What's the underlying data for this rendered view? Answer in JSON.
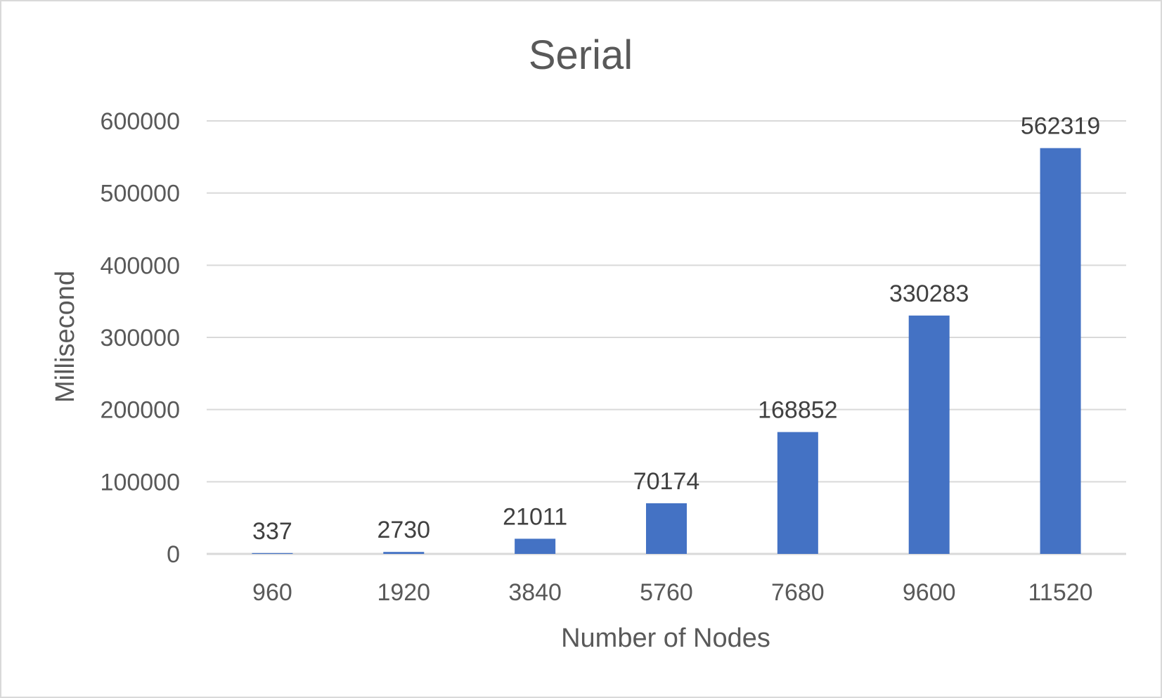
{
  "chart_data": {
    "type": "bar",
    "title": "Serial",
    "xlabel": "Number of Nodes",
    "ylabel": "Millisecond",
    "categories": [
      "960",
      "1920",
      "3840",
      "5760",
      "7680",
      "9600",
      "11520"
    ],
    "values": [
      337,
      2730,
      21011,
      70174,
      168852,
      330283,
      562319
    ],
    "data_labels": [
      "337",
      "2730",
      "21011",
      "70174",
      "168852",
      "330283",
      "562319"
    ],
    "ylim": [
      0,
      600000
    ],
    "yticks": [
      0,
      100000,
      200000,
      300000,
      400000,
      500000,
      600000
    ],
    "ytick_labels": [
      "0",
      "100000",
      "200000",
      "300000",
      "400000",
      "500000",
      "600000"
    ],
    "grid": true,
    "legend": "none",
    "bar_color": "#4472c4",
    "grid_color": "#d9d9d9"
  }
}
